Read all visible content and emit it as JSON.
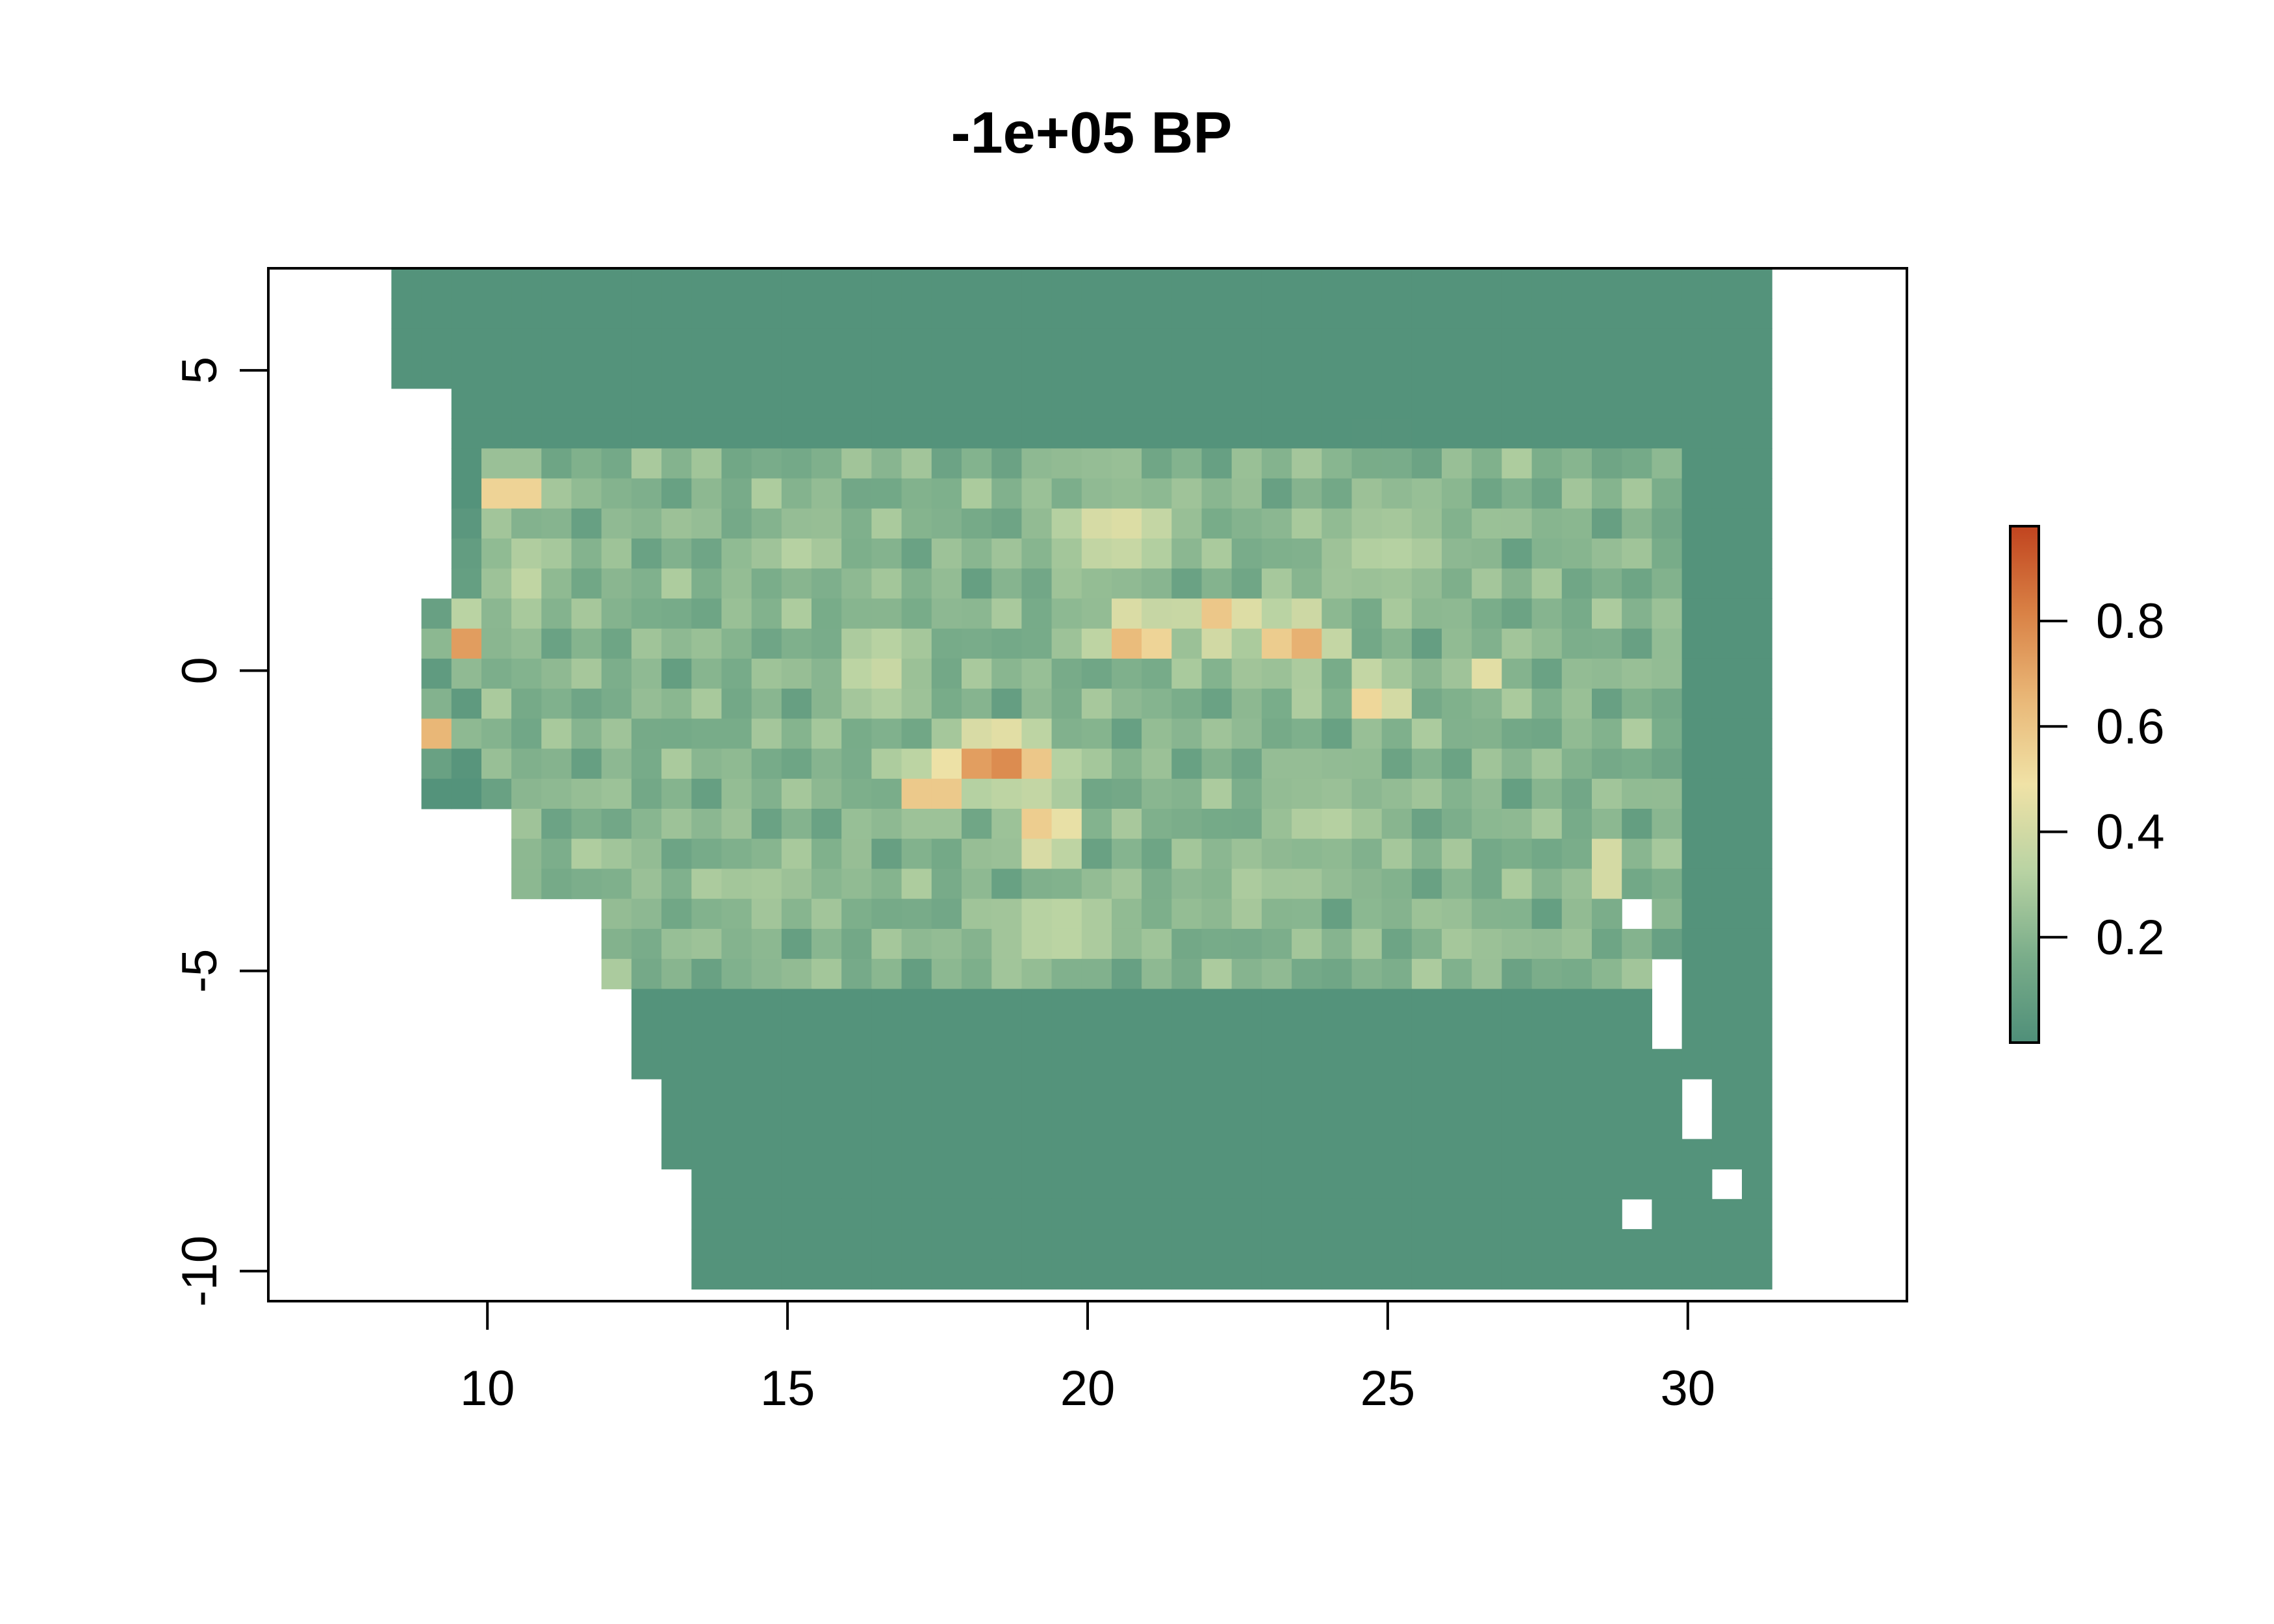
{
  "title": "-1e+05 BP",
  "axes": {
    "x": {
      "range": [
        6.35,
        33.65
      ],
      "ticks": [
        10,
        15,
        20,
        25,
        30
      ],
      "tick_labels": [
        "10",
        "15",
        "20",
        "25",
        "30"
      ]
    },
    "y": {
      "range": [
        -10.5,
        6.7
      ],
      "ticks": [
        5,
        0,
        -5,
        -10
      ],
      "tick_labels": [
        "5",
        "0",
        "-5",
        "-10"
      ]
    }
  },
  "data_extent": {
    "lon": [
      8.4,
      31.6
    ],
    "lat": [
      -10.5,
      6.7
    ]
  },
  "legend": {
    "range": [
      0.0,
      0.98
    ],
    "ticks": [
      0.2,
      0.4,
      0.6,
      0.8
    ],
    "tick_labels": [
      "0.2",
      "0.4",
      "0.6",
      "0.8"
    ],
    "colors": [
      "#4f8f79",
      "#7aad8a",
      "#b9d3a3",
      "#f0e2a6",
      "#e9b777",
      "#d98145",
      "#c1441f"
    ]
  },
  "colors": {
    "background_value": "#528f7a",
    "no_data": "#ffffff",
    "frame": "#000000"
  }
}
